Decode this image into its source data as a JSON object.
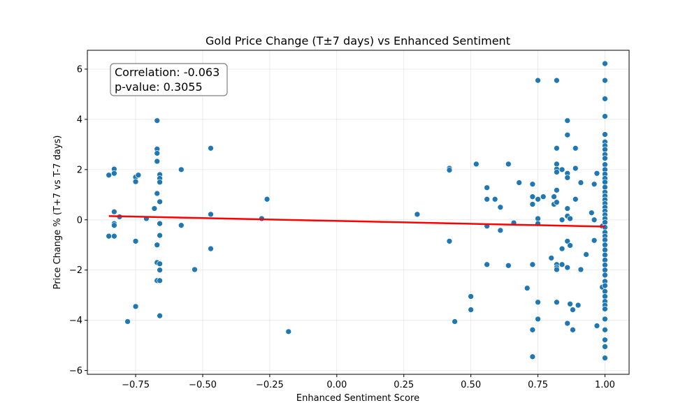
{
  "chart_data": {
    "type": "scatter",
    "title": "Gold Price Change (T±7 days) vs Enhanced Sentiment",
    "xlabel": "Enhanced Sentiment Score",
    "ylabel": "Price Change % (T+7 vs T-7 days)",
    "xlim": [
      -0.93,
      1.09
    ],
    "ylim": [
      -6.15,
      6.75
    ],
    "xticks": [
      -0.75,
      -0.5,
      -0.25,
      0.0,
      0.25,
      0.5,
      0.75,
      1.0
    ],
    "xtick_labels": [
      "−0.75",
      "−0.50",
      "−0.25",
      "0.00",
      "0.25",
      "0.50",
      "0.75",
      "1.00"
    ],
    "yticks": [
      -6,
      -4,
      -2,
      0,
      2,
      4,
      6
    ],
    "ytick_labels": [
      "−6",
      "−4",
      "−2",
      "0",
      "2",
      "4",
      "6"
    ],
    "grid": true,
    "point_color": "#1f77b4",
    "trend_color": "#ff0000",
    "annotation": {
      "correlation": "Correlation: -0.063",
      "pvalue": "p-value: 0.3055"
    },
    "trend_line": {
      "x": [
        -0.85,
        1.0
      ],
      "y": [
        0.15,
        -0.27
      ]
    },
    "points": [
      [
        -0.85,
        1.78
      ],
      [
        -0.85,
        -0.65
      ],
      [
        -0.83,
        2.02
      ],
      [
        -0.83,
        1.85
      ],
      [
        -0.83,
        0.32
      ],
      [
        -0.83,
        -0.15
      ],
      [
        -0.83,
        -0.22
      ],
      [
        -0.83,
        -0.65
      ],
      [
        -0.81,
        0.12
      ],
      [
        -0.78,
        -4.05
      ],
      [
        -0.75,
        1.7
      ],
      [
        -0.75,
        1.52
      ],
      [
        -0.75,
        -0.85
      ],
      [
        -0.75,
        -3.45
      ],
      [
        -0.74,
        1.78
      ],
      [
        -0.71,
        0.05
      ],
      [
        -0.68,
        0.45
      ],
      [
        -0.67,
        3.95
      ],
      [
        -0.67,
        2.82
      ],
      [
        -0.67,
        2.65
      ],
      [
        -0.67,
        2.33
      ],
      [
        -0.67,
        1.05
      ],
      [
        -0.67,
        -1.0
      ],
      [
        -0.67,
        -1.7
      ],
      [
        -0.67,
        -2.42
      ],
      [
        -0.66,
        1.8
      ],
      [
        -0.66,
        1.65
      ],
      [
        -0.66,
        1.5
      ],
      [
        -0.66,
        0.72
      ],
      [
        -0.66,
        -0.15
      ],
      [
        -0.66,
        -0.62
      ],
      [
        -0.66,
        -1.75
      ],
      [
        -0.66,
        -2.0
      ],
      [
        -0.66,
        -2.42
      ],
      [
        -0.66,
        -3.82
      ],
      [
        -0.58,
        2.0
      ],
      [
        -0.58,
        -0.22
      ],
      [
        -0.53,
        -1.98
      ],
      [
        -0.47,
        2.85
      ],
      [
        -0.47,
        0.22
      ],
      [
        -0.47,
        -1.15
      ],
      [
        -0.28,
        0.05
      ],
      [
        -0.26,
        0.82
      ],
      [
        -0.18,
        -4.45
      ],
      [
        0.3,
        0.22
      ],
      [
        0.42,
        2.05
      ],
      [
        0.42,
        1.98
      ],
      [
        0.42,
        -0.85
      ],
      [
        0.44,
        -4.05
      ],
      [
        0.5,
        -3.05
      ],
      [
        0.5,
        -3.58
      ],
      [
        0.52,
        2.22
      ],
      [
        0.56,
        1.28
      ],
      [
        0.56,
        0.82
      ],
      [
        0.56,
        -0.25
      ],
      [
        0.56,
        -1.78
      ],
      [
        0.59,
        0.82
      ],
      [
        0.61,
        0.5
      ],
      [
        0.61,
        -0.42
      ],
      [
        0.64,
        2.22
      ],
      [
        0.64,
        -1.82
      ],
      [
        0.66,
        -0.12
      ],
      [
        0.68,
        1.48
      ],
      [
        0.71,
        -2.72
      ],
      [
        0.73,
        1.42
      ],
      [
        0.73,
        0.92
      ],
      [
        0.73,
        0.62
      ],
      [
        0.73,
        -1.78
      ],
      [
        0.73,
        -4.38
      ],
      [
        0.73,
        -5.45
      ],
      [
        0.75,
        5.55
      ],
      [
        0.75,
        0.82
      ],
      [
        0.75,
        0.05
      ],
      [
        0.75,
        -0.15
      ],
      [
        0.75,
        -3.28
      ],
      [
        0.75,
        -3.95
      ],
      [
        0.77,
        0.92
      ],
      [
        0.8,
        -1.52
      ],
      [
        0.81,
        0.92
      ],
      [
        0.81,
        0.62
      ],
      [
        0.82,
        5.55
      ],
      [
        0.82,
        2.85
      ],
      [
        0.82,
        2.22
      ],
      [
        0.82,
        2.02
      ],
      [
        0.82,
        1.9
      ],
      [
        0.82,
        1.18
      ],
      [
        0.82,
        0.7
      ],
      [
        0.82,
        -1.78
      ],
      [
        0.82,
        -1.9
      ],
      [
        0.82,
        -1.98
      ],
      [
        0.82,
        -3.28
      ],
      [
        0.84,
        2.0
      ],
      [
        0.84,
        0.0
      ],
      [
        0.84,
        -1.15
      ],
      [
        0.84,
        -1.78
      ],
      [
        0.86,
        3.95
      ],
      [
        0.86,
        3.38
      ],
      [
        0.86,
        1.85
      ],
      [
        0.86,
        1.68
      ],
      [
        0.86,
        0.45
      ],
      [
        0.86,
        0.15
      ],
      [
        0.86,
        -0.85
      ],
      [
        0.86,
        -1.9
      ],
      [
        0.86,
        -4.12
      ],
      [
        0.87,
        0.05
      ],
      [
        0.87,
        -1.02
      ],
      [
        0.87,
        -3.35
      ],
      [
        0.88,
        -3.58
      ],
      [
        0.88,
        -4.38
      ],
      [
        0.89,
        2.85
      ],
      [
        0.89,
        2.05
      ],
      [
        0.89,
        0.82
      ],
      [
        0.9,
        -3.4
      ],
      [
        0.91,
        1.48
      ],
      [
        0.91,
        -1.98
      ],
      [
        0.93,
        -1.38
      ],
      [
        0.95,
        0.28
      ],
      [
        0.96,
        1.42
      ],
      [
        0.96,
        0.0
      ],
      [
        0.96,
        -0.82
      ],
      [
        0.97,
        1.85
      ],
      [
        0.97,
        -4.22
      ],
      [
        0.99,
        -2.68
      ],
      [
        0.99,
        -0.25
      ],
      [
        1.0,
        6.22
      ],
      [
        1.0,
        5.55
      ],
      [
        1.0,
        4.82
      ],
      [
        1.0,
        4.12
      ],
      [
        1.0,
        3.4
      ],
      [
        1.0,
        3.1
      ],
      [
        1.0,
        2.95
      ],
      [
        1.0,
        2.8
      ],
      [
        1.0,
        2.6
      ],
      [
        1.0,
        2.45
      ],
      [
        1.0,
        2.2
      ],
      [
        1.0,
        2.0
      ],
      [
        1.0,
        1.82
      ],
      [
        1.0,
        1.65
      ],
      [
        1.0,
        1.5
      ],
      [
        1.0,
        1.3
      ],
      [
        1.0,
        1.1
      ],
      [
        1.0,
        0.95
      ],
      [
        1.0,
        0.8
      ],
      [
        1.0,
        0.65
      ],
      [
        1.0,
        0.5
      ],
      [
        1.0,
        0.35
      ],
      [
        1.0,
        0.2
      ],
      [
        1.0,
        0.05
      ],
      [
        1.0,
        -0.1
      ],
      [
        1.0,
        -0.3
      ],
      [
        1.0,
        -0.5
      ],
      [
        1.0,
        -0.65
      ],
      [
        1.0,
        -0.8
      ],
      [
        1.0,
        -1.0
      ],
      [
        1.0,
        -1.2
      ],
      [
        1.0,
        -1.4
      ],
      [
        1.0,
        -1.6
      ],
      [
        1.0,
        -1.8
      ],
      [
        1.0,
        -2.0
      ],
      [
        1.0,
        -2.2
      ],
      [
        1.0,
        -2.45
      ],
      [
        1.0,
        -2.62
      ],
      [
        1.0,
        -2.85
      ],
      [
        1.0,
        -3.05
      ],
      [
        1.0,
        -3.25
      ],
      [
        1.0,
        -3.4
      ],
      [
        1.0,
        -3.55
      ],
      [
        1.0,
        -3.95
      ],
      [
        1.0,
        -4.38
      ],
      [
        1.0,
        -4.78
      ],
      [
        1.0,
        -5.05
      ],
      [
        1.0,
        -5.5
      ]
    ]
  }
}
